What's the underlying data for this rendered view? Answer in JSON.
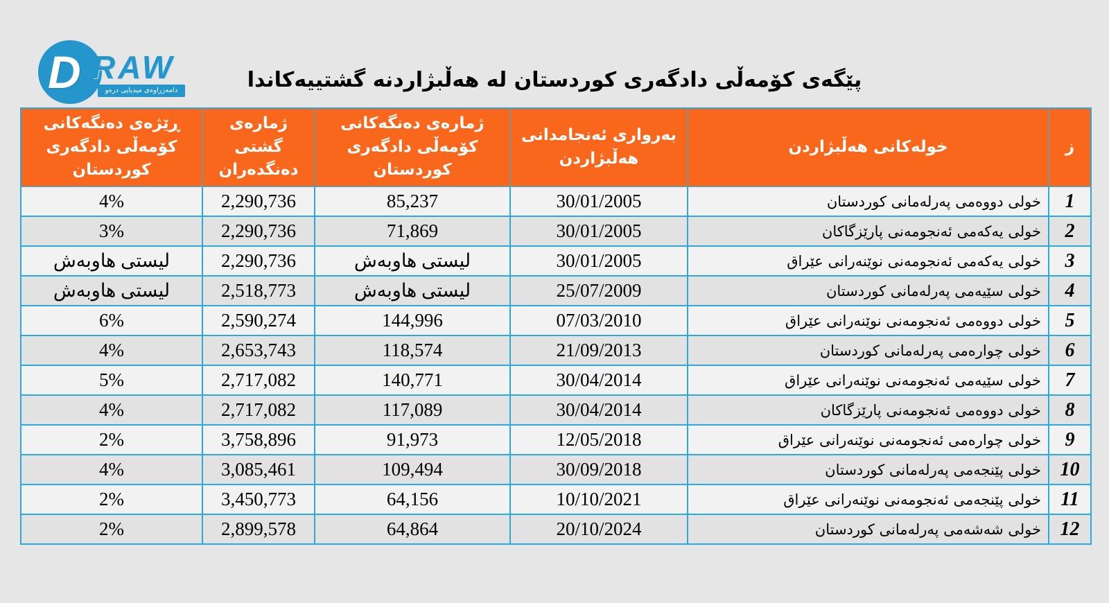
{
  "page": {
    "title": "پێگەی کۆمەڵی دادگەری کوردستان لە هەڵبژاردنە گشتییەکاندا"
  },
  "logo": {
    "d_letter": "D",
    "wordmark": "RAW",
    "tagline": "دامەزراوەی میدیایی درەو",
    "brand_color": "#2496cc"
  },
  "colors": {
    "page_background": "#e6e6e6",
    "header_background": "#f8671c",
    "header_text": "#ffffff",
    "table_border": "#2aa9df",
    "header_divider": "#7d939c",
    "row_odd": "#f2f2f2",
    "row_even": "#e2e2e2"
  },
  "table": {
    "headers": {
      "pct": "ڕێژەی دەنگەکانی کۆمەڵی دادگەری کوردستان",
      "total": "ژمارەی گشتی دەنگدەران",
      "votes": "ژمارەی دەنگەکانی کۆمەڵی دادگەری کوردستان",
      "date": "بەرواری ئەنجامدانی هەڵبژاردن",
      "round": "خولەکانی هەڵبژاردن",
      "num": "ز"
    },
    "rows": [
      {
        "pct": "4%",
        "total": "2,290,736",
        "votes": "85,237",
        "date": "30/01/2005",
        "round": "خولی دووەمی پەرلەمانی کوردستان",
        "num": "1"
      },
      {
        "pct": "3%",
        "total": "2,290,736",
        "votes": "71,869",
        "date": "30/01/2005",
        "round": "خولی یەکەمی ئەنجومەنی پارێزگاکان",
        "num": "2"
      },
      {
        "pct": "لیستی هاوبەش",
        "total": "2,290,736",
        "votes": "لیستی هاوبەش",
        "date": "30/01/2005",
        "round": "خولی یەکەمی ئەنجومەنی نوێنەرانی عێراق",
        "num": "3"
      },
      {
        "pct": "لیستی هاوبەش",
        "total": "2,518,773",
        "votes": "لیستی هاوبەش",
        "date": "25/07/2009",
        "round": "خولی سێیەمی پەرلەمانی کوردستان",
        "num": "4"
      },
      {
        "pct": "6%",
        "total": "2,590,274",
        "votes": "144,996",
        "date": "07/03/2010",
        "round": "خولی دووەمی ئەنجومەنی نوێنەرانی عێراق",
        "num": "5"
      },
      {
        "pct": "4%",
        "total": "2,653,743",
        "votes": "118,574",
        "date": "21/09/2013",
        "round": "خولی چوارەمی پەرلەمانی کوردستان",
        "num": "6"
      },
      {
        "pct": "5%",
        "total": "2,717,082",
        "votes": "140,771",
        "date": "30/04/2014",
        "round": "خولی سێیەمی ئەنجومەنی نوێنەرانی عێراق",
        "num": "7"
      },
      {
        "pct": "4%",
        "total": "2,717,082",
        "votes": "117,089",
        "date": "30/04/2014",
        "round": "خولی دووەمی ئەنجومەنی پارێزگاکان",
        "num": "8"
      },
      {
        "pct": "2%",
        "total": "3,758,896",
        "votes": "91,973",
        "date": "12/05/2018",
        "round": "خولی چوارەمی ئەنجومەنی نوێنەرانی عێراق",
        "num": "9"
      },
      {
        "pct": "4%",
        "total": "3,085,461",
        "votes": "109,494",
        "date": "30/09/2018",
        "round": "خولی پێنجەمی پەرلەمانی کوردستان",
        "num": "10"
      },
      {
        "pct": "2%",
        "total": "3,450,773",
        "votes": "64,156",
        "date": "10/10/2021",
        "round": "خولی پێنجەمی ئەنجومەنی نوێنەرانی عێراق",
        "num": "11"
      },
      {
        "pct": "2%",
        "total": "2,899,578",
        "votes": "64,864",
        "date": "20/10/2024",
        "round": "خولی شەشەمی پەرلەمانی کوردستان",
        "num": "12"
      }
    ]
  },
  "chart_data": {
    "type": "table",
    "title": "پێگەی کۆمەڵی دادگەری کوردستان لە هەڵبژاردنە گشتییەکاندا",
    "columns_rtl": [
      "ز",
      "خولەکانی هەڵبژاردن",
      "بەرواری ئەنجامدانی هەڵبژاردن",
      "ژمارەی دەنگەکانی کۆمەڵی دادگەری کوردستان",
      "ژمارەی گشتی دەنگدەران",
      "ڕێژەی دەنگەکانی کۆمەڵی دادگەری کوردستان"
    ],
    "rows": [
      [
        1,
        "خولی دووەمی پەرلەمانی کوردستان",
        "30/01/2005",
        85237,
        2290736,
        "4%"
      ],
      [
        2,
        "خولی یەکەمی ئەنجومەنی پارێزگاکان",
        "30/01/2005",
        71869,
        2290736,
        "3%"
      ],
      [
        3,
        "خولی یەکەمی ئەنجومەنی نوێنەرانی عێراق",
        "30/01/2005",
        "لیستی هاوبەش",
        2290736,
        "لیستی هاوبەش"
      ],
      [
        4,
        "خولی سێیەمی پەرلەمانی کوردستان",
        "25/07/2009",
        "لیستی هاوبەش",
        2518773,
        "لیستی هاوبەش"
      ],
      [
        5,
        "خولی دووەمی ئەنجومەنی نوێنەرانی عێراق",
        "07/03/2010",
        144996,
        2590274,
        "6%"
      ],
      [
        6,
        "خولی چوارەمی پەرلەمانی کوردستان",
        "21/09/2013",
        118574,
        2653743,
        "4%"
      ],
      [
        7,
        "خولی سێیەمی ئەنجومەنی نوێنەرانی عێراق",
        "30/04/2014",
        140771,
        2717082,
        "5%"
      ],
      [
        8,
        "خولی دووەمی ئەنجومەنی پارێزگاکان",
        "30/04/2014",
        117089,
        2717082,
        "4%"
      ],
      [
        9,
        "خولی چوارەمی ئەنجومەنی نوێنەرانی عێراق",
        "12/05/2018",
        91973,
        3758896,
        "2%"
      ],
      [
        10,
        "خولی پێنجەمی پەرلەمانی کوردستان",
        "30/09/2018",
        109494,
        3085461,
        "4%"
      ],
      [
        11,
        "خولی پێنجەمی ئەنجومەنی نوێنەرانی عێراق",
        "10/10/2021",
        64156,
        3450773,
        "2%"
      ],
      [
        12,
        "خولی شەشەمی پەرلەمانی کوردستان",
        "20/10/2024",
        64864,
        2899578,
        "2%"
      ]
    ]
  }
}
